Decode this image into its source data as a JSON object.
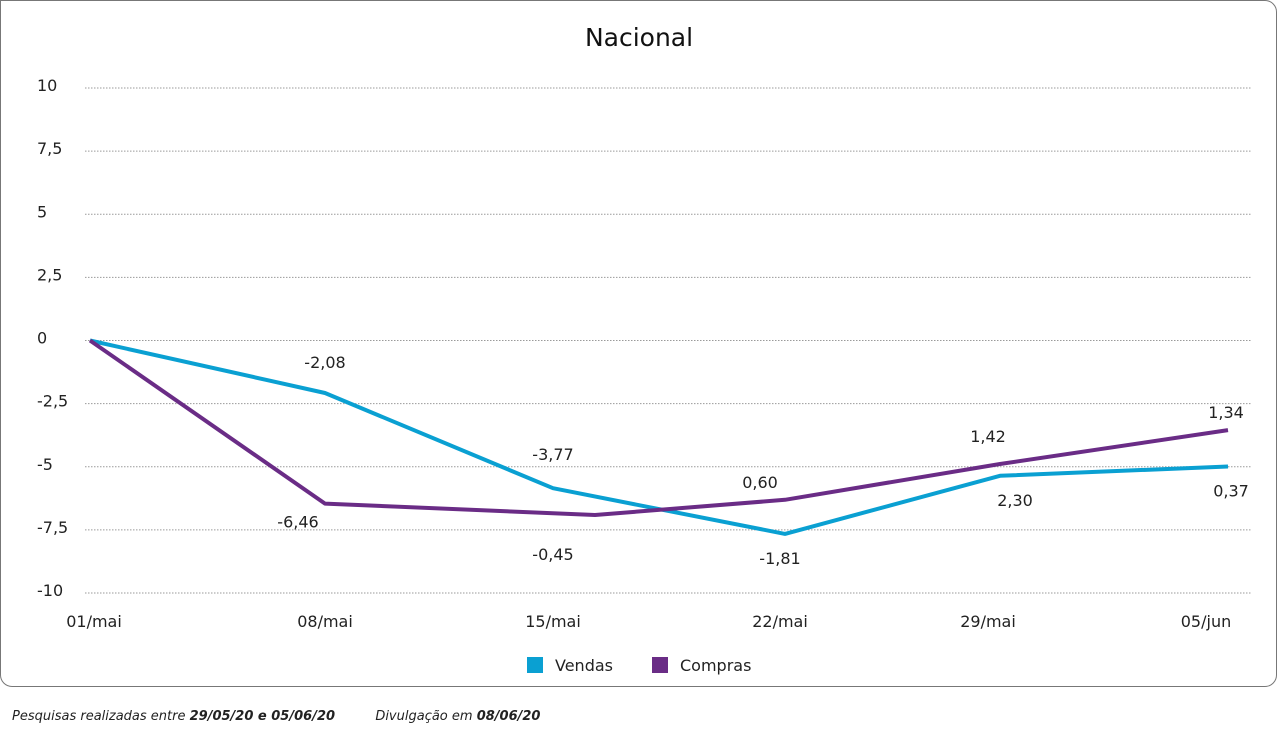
{
  "chart_data": {
    "type": "line",
    "title": "Nacional",
    "xlabel": "",
    "ylabel": "",
    "categories": [
      "01/mai",
      "08/mai",
      "15/mai",
      "22/mai",
      "29/mai",
      "05/jun"
    ],
    "yticks": [
      "10",
      "7,5",
      "5",
      "2,5",
      "0",
      "-2,5",
      "-5",
      "-7,5",
      "-10"
    ],
    "ytick_values": [
      10,
      7.5,
      5,
      2.5,
      0,
      -2.5,
      -5,
      -7.5,
      -10
    ],
    "ylim": [
      -10,
      10
    ],
    "grid": true,
    "legend_position": "bottom-center",
    "series": [
      {
        "name": "Vendas",
        "color": "#0aa0d2",
        "values": [
          0,
          -2.08,
          -5.85,
          -7.66,
          -5.36,
          -4.99
        ],
        "labels": [
          "",
          "-2,08",
          "-3,77",
          "-1,81",
          "2,30",
          "0,37"
        ]
      },
      {
        "name": "Compras",
        "color": "#6a2c86",
        "values": [
          0,
          -6.46,
          -6.91,
          -6.31,
          -4.89,
          -3.55
        ],
        "labels": [
          "",
          "-6,46",
          "-0,45",
          "0,60",
          "1,42",
          "1,34"
        ]
      }
    ]
  },
  "footer": {
    "survey_prefix": "Pesquisas realizadas entre",
    "survey_dates": "29/05/20 e 05/06/20",
    "release_prefix": "Divulgação em",
    "release_date": "08/06/20"
  }
}
